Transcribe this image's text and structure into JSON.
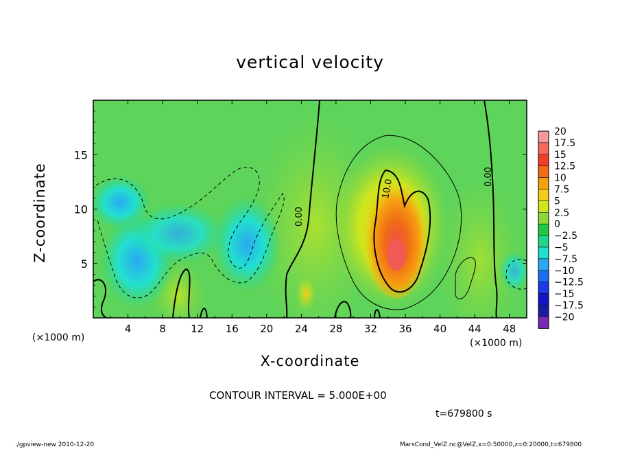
{
  "chart_data": {
    "type": "heatmap",
    "title": "vertical velocity",
    "xlabel": "X-coordinate",
    "ylabel": "Z-coordinate",
    "x_unit_label": "(×1000 m)",
    "xlim": [
      0,
      50
    ],
    "ylim": [
      0,
      20
    ],
    "x_ticks": [
      4,
      8,
      12,
      16,
      20,
      24,
      28,
      32,
      36,
      40,
      44,
      48
    ],
    "y_ticks": [
      5,
      10,
      15
    ],
    "colorbar": {
      "labels": [
        "20",
        "17.5",
        "15",
        "12.5",
        "10",
        "7.5",
        "5",
        "2.5",
        "0",
        "−2.5",
        "−5",
        "−7.5",
        "−10",
        "−12.5",
        "−15",
        "−17.5",
        "−20"
      ],
      "colors": [
        "#f59a9a",
        "#f56a5a",
        "#f04028",
        "#f06a18",
        "#f5a010",
        "#f5cd15",
        "#cde61e",
        "#8ed73a",
        "#22c842",
        "#22d58a",
        "#22e0d0",
        "#2aa8f0",
        "#1e6ef5",
        "#1a38e6",
        "#1214c8",
        "#1a1aa0",
        "#7828b4"
      ]
    },
    "contour_labels": [
      "0.00",
      "10.0",
      "0.00"
    ],
    "contour_interval": 5.0,
    "features": [
      {
        "kind": "updraft",
        "x": 34.5,
        "z": 6,
        "peak": 15
      },
      {
        "kind": "downdraft",
        "x": 3.5,
        "z": 10,
        "peak": -7.5
      },
      {
        "kind": "downdraft",
        "x": 18,
        "z": 6,
        "peak": -7.5
      }
    ]
  },
  "annotations": {
    "contour_interval_text": "CONTOUR INTERVAL = 5.000E+00",
    "time_text": "t=679800 s",
    "footer_left": "./gpview-new  2010-12-20",
    "footer_right": "MarsCond_VelZ.nc@VelZ,x=0:50000,z=0:20000,t=679800"
  }
}
